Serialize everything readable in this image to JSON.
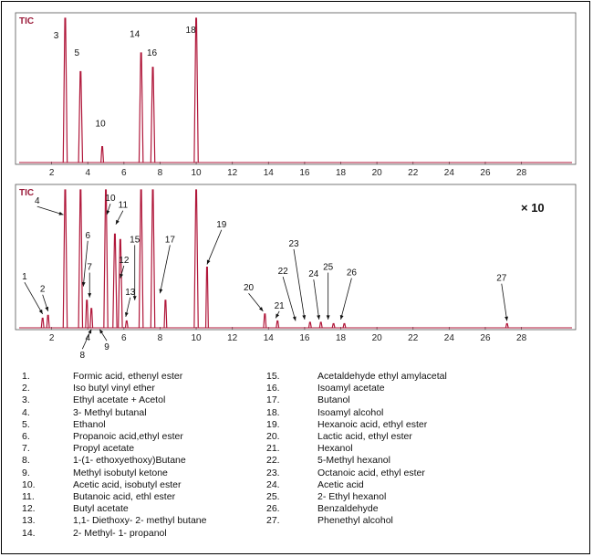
{
  "chart_data": [
    {
      "type": "line",
      "label": "TIC",
      "multiplier": "",
      "xlim": [
        0,
        31
      ],
      "x_ticks": [
        2,
        4,
        6,
        8,
        10,
        12,
        14,
        16,
        18,
        20,
        22,
        24,
        26,
        28
      ],
      "peaks": [
        {
          "id": "3",
          "x": 2.75,
          "h": 1.0
        },
        {
          "id": "5",
          "x": 3.6,
          "h": 0.63
        },
        {
          "id": "10",
          "x": 4.8,
          "h": 0.11
        },
        {
          "id": "14",
          "x": 6.95,
          "h": 0.76
        },
        {
          "id": "16",
          "x": 7.6,
          "h": 0.66
        },
        {
          "id": "18",
          "x": 10.0,
          "h": 1.0
        }
      ],
      "labels": [
        {
          "text": "3",
          "x": 2.25,
          "h": 0.86
        },
        {
          "text": "5",
          "x": 3.4,
          "h": 0.74
        },
        {
          "text": "10",
          "x": 4.7,
          "h": 0.25
        },
        {
          "text": "14",
          "x": 6.6,
          "h": 0.87
        },
        {
          "text": "16",
          "x": 7.55,
          "h": 0.74
        },
        {
          "text": "18",
          "x": 9.7,
          "h": 0.9
        }
      ]
    },
    {
      "type": "line",
      "label": "TIC",
      "multiplier": "× 10",
      "xlim": [
        0,
        31
      ],
      "x_ticks": [
        2,
        4,
        6,
        8,
        10,
        12,
        14,
        16,
        18,
        20,
        22,
        24,
        26,
        28
      ],
      "peaks": [
        {
          "id": "1",
          "x": 1.5,
          "h": 0.07
        },
        {
          "id": "2",
          "x": 1.8,
          "h": 0.09
        },
        {
          "id": "4",
          "x": 2.75,
          "h": 1.0
        },
        {
          "id": "5",
          "x": 3.6,
          "h": 1.0
        },
        {
          "id": "6",
          "x": 3.95,
          "h": 0.2
        },
        {
          "id": "7",
          "x": 4.2,
          "h": 0.14
        },
        {
          "id": "10",
          "x": 5.0,
          "h": 1.0
        },
        {
          "id": "11",
          "x": 5.5,
          "h": 0.68
        },
        {
          "id": "12",
          "x": 5.8,
          "h": 0.64
        },
        {
          "id": "13",
          "x": 6.15,
          "h": 0.05
        },
        {
          "id": "14",
          "x": 6.95,
          "h": 1.0
        },
        {
          "id": "16",
          "x": 7.6,
          "h": 1.0
        },
        {
          "id": "17",
          "x": 8.3,
          "h": 0.2
        },
        {
          "id": "18",
          "x": 10.0,
          "h": 1.0
        },
        {
          "id": "19",
          "x": 10.6,
          "h": 0.44
        },
        {
          "id": "20",
          "x": 13.8,
          "h": 0.1
        },
        {
          "id": "21",
          "x": 14.5,
          "h": 0.05
        },
        {
          "id": "23",
          "x": 16.3,
          "h": 0.04
        },
        {
          "id": "24",
          "x": 16.9,
          "h": 0.04
        },
        {
          "id": "25",
          "x": 17.6,
          "h": 0.03
        },
        {
          "id": "26",
          "x": 18.2,
          "h": 0.03
        },
        {
          "id": "27",
          "x": 27.2,
          "h": 0.03
        }
      ],
      "labels": [
        {
          "text": "1",
          "x": 0.5,
          "h": 0.35,
          "ax": 1.5,
          "ah": 0.1
        },
        {
          "text": "2",
          "x": 1.5,
          "h": 0.26,
          "ax": 1.8,
          "ah": 0.12
        },
        {
          "text": "4",
          "x": 1.2,
          "h": 0.9,
          "ax": 2.65,
          "ah": 0.82
        },
        {
          "text": "6",
          "x": 4.0,
          "h": 0.65,
          "ax": 3.75,
          "ah": 0.3
        },
        {
          "text": "7",
          "x": 4.1,
          "h": 0.42,
          "ax": 4.1,
          "ah": 0.22
        },
        {
          "text": "8",
          "x": 3.7,
          "h": -0.22,
          "ax": 4.2,
          "ah": -0.01
        },
        {
          "text": "9",
          "x": 5.05,
          "h": -0.16,
          "ax": 4.65,
          "ah": -0.01
        },
        {
          "text": "10",
          "x": 5.25,
          "h": 0.92,
          "ax": 5.05,
          "ah": 0.82
        },
        {
          "text": "11",
          "x": 5.95,
          "h": 0.87,
          "ax": 5.55,
          "ah": 0.75
        },
        {
          "text": "12",
          "x": 6.0,
          "h": 0.47,
          "ax": 5.8,
          "ah": 0.36
        },
        {
          "text": "13",
          "x": 6.35,
          "h": 0.24,
          "ax": 6.1,
          "ah": 0.08
        },
        {
          "text": "15",
          "x": 6.6,
          "h": 0.62,
          "ax": 6.6,
          "ah": 0.2
        },
        {
          "text": "17",
          "x": 8.55,
          "h": 0.62,
          "ax": 8.0,
          "ah": 0.25
        },
        {
          "text": "19",
          "x": 11.4,
          "h": 0.73,
          "ax": 10.6,
          "ah": 0.46
        },
        {
          "text": "20",
          "x": 12.9,
          "h": 0.27,
          "ax": 13.7,
          "ah": 0.12
        },
        {
          "text": "21",
          "x": 14.6,
          "h": 0.14,
          "ax": 14.4,
          "ah": 0.07
        },
        {
          "text": "22",
          "x": 14.8,
          "h": 0.39,
          "ax": 15.5,
          "ah": 0.05
        },
        {
          "text": "23",
          "x": 15.4,
          "h": 0.59,
          "ax": 16.0,
          "ah": 0.06
        },
        {
          "text": "24",
          "x": 16.5,
          "h": 0.37,
          "ax": 16.8,
          "ah": 0.06
        },
        {
          "text": "25",
          "x": 17.3,
          "h": 0.42,
          "ax": 17.3,
          "ah": 0.06
        },
        {
          "text": "26",
          "x": 18.6,
          "h": 0.38,
          "ax": 18.0,
          "ah": 0.06
        },
        {
          "text": "27",
          "x": 26.9,
          "h": 0.34,
          "ax": 27.2,
          "ah": 0.05
        }
      ]
    }
  ],
  "legend": [
    {
      "num": "1.",
      "name": "Formic acid, ethenyl ester"
    },
    {
      "num": "2.",
      "name": "Iso butyl vinyl ether"
    },
    {
      "num": "3.",
      "name": "Ethyl acetate + Acetol"
    },
    {
      "num": "4.",
      "name": "3- Methyl butanal"
    },
    {
      "num": "5.",
      "name": "Ethanol"
    },
    {
      "num": "6.",
      "name": "Propanoic acid,ethyl ester"
    },
    {
      "num": "7.",
      "name": "Propyl acetate"
    },
    {
      "num": "8.",
      "name": "1-(1- ethoxyethoxy)Butane"
    },
    {
      "num": "9.",
      "name": "Methyl isobutyl ketone"
    },
    {
      "num": "10.",
      "name": "Acetic acid, isobutyl ester"
    },
    {
      "num": "11.",
      "name": "Butanoic acid, ethl ester"
    },
    {
      "num": "12.",
      "name": "Butyl acetate"
    },
    {
      "num": "13.",
      "name": "1,1- Diethoxy- 2- methyl butane"
    },
    {
      "num": "14.",
      "name": "2- Methyl- 1- propanol"
    },
    {
      "num": "15.",
      "name": "Acetaldehyde ethyl amylacetal"
    },
    {
      "num": "16.",
      "name": "Isoamyl acetate"
    },
    {
      "num": "17.",
      "name": "Butanol"
    },
    {
      "num": "18.",
      "name": "Isoamyl alcohol"
    },
    {
      "num": "19.",
      "name": "Hexanoic acid, ethyl ester"
    },
    {
      "num": "20.",
      "name": "Lactic acid, ethyl ester"
    },
    {
      "num": "21.",
      "name": "Hexanol"
    },
    {
      "num": "22.",
      "name": "5-Methyl hexanol"
    },
    {
      "num": "23.",
      "name": "Octanoic acid, ethyl ester"
    },
    {
      "num": "24.",
      "name": "Acetic acid"
    },
    {
      "num": "25.",
      "name": "2- Ethyl hexanol"
    },
    {
      "num": "26.",
      "name": "Benzaldehyde"
    },
    {
      "num": "27.",
      "name": "Phenethyl alcohol"
    }
  ],
  "colors": {
    "trace": "#b0173a",
    "axis": "#555555"
  }
}
